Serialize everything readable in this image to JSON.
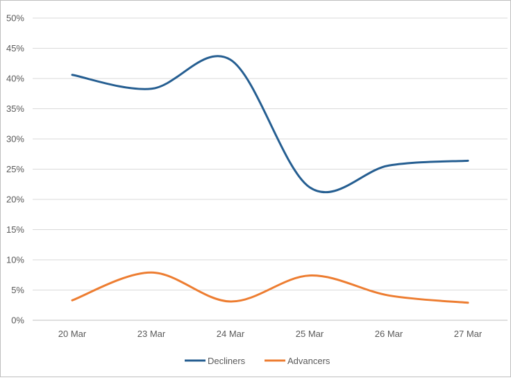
{
  "chart_data": {
    "type": "line",
    "title": "",
    "xlabel": "",
    "ylabel": "",
    "categories": [
      "20 Mar",
      "23 Mar",
      "24 Mar",
      "25 Mar",
      "26 Mar",
      "27 Mar"
    ],
    "ylim": [
      0,
      50
    ],
    "yticks": [
      0,
      5,
      10,
      15,
      20,
      25,
      30,
      35,
      40,
      45,
      50
    ],
    "ytick_labels": [
      "0%",
      "5%",
      "10%",
      "15%",
      "20%",
      "25%",
      "30%",
      "35%",
      "40%",
      "45%",
      "50%"
    ],
    "grid": true,
    "smooth": true,
    "legend_position": "bottom",
    "series": [
      {
        "name": "Decliners",
        "color": "#255e91",
        "values": [
          40.6,
          38.3,
          43.1,
          22.0,
          25.6,
          26.4
        ]
      },
      {
        "name": "Advancers",
        "color": "#ed7d31",
        "values": [
          3.3,
          7.9,
          3.1,
          7.4,
          4.1,
          2.9
        ]
      }
    ]
  }
}
